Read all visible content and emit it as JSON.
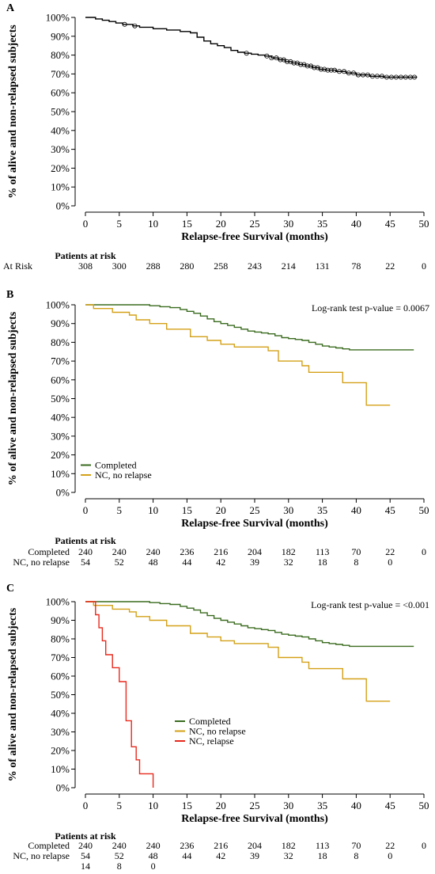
{
  "chart_data": [
    {
      "panel": "A",
      "type": "line",
      "xlabel": "Relapse-free Survival (months)",
      "ylabel": "% of alive and non-relapsed subjects",
      "xlim": [
        0,
        50
      ],
      "ylim": [
        0,
        100
      ],
      "xticks": [
        "0",
        "5",
        "10",
        "15",
        "20",
        "25",
        "30",
        "35",
        "40",
        "45",
        "50"
      ],
      "yticks": [
        "0%",
        "10%",
        "20%",
        "30%",
        "40%",
        "50%",
        "60%",
        "70%",
        "80%",
        "90%",
        "100%"
      ],
      "grid": false,
      "annotation": "",
      "legend_position": "",
      "series": [
        {
          "name": "",
          "color": "#000000",
          "x": [
            0,
            1.5,
            2.5,
            3.5,
            4.5,
            5.5,
            7,
            8,
            10,
            12,
            14,
            15.5,
            16.5,
            17.5,
            18.5,
            19.5,
            20.5,
            21.5,
            22.5,
            23.5,
            24.5,
            25.5,
            26.5,
            27.5,
            28.5,
            29.5,
            30.5,
            31.5,
            32.5,
            33.5,
            34.5,
            35.5,
            37,
            38.5,
            40,
            42,
            44,
            49
          ],
          "y": [
            100,
            99.2,
            98.5,
            97.8,
            97,
            96.3,
            95.5,
            94.8,
            94,
            93.3,
            92.5,
            91.8,
            89.5,
            87.5,
            86,
            85,
            84,
            82.5,
            81.5,
            81,
            80.5,
            80,
            79.5,
            78.5,
            77.5,
            76.5,
            75.8,
            75,
            74.2,
            73.3,
            72.5,
            72,
            71.3,
            70.5,
            69.5,
            68.8,
            68.3,
            68.3
          ]
        }
      ],
      "censor_x": [
        5.8,
        7.3,
        23.8,
        26.8,
        27.5,
        28.2,
        28.8,
        29.3,
        29.8,
        30.3,
        30.8,
        31.3,
        31.8,
        32.3,
        32.8,
        33.3,
        33.8,
        34.3,
        34.8,
        35.3,
        35.8,
        36.3,
        36.8,
        37.5,
        38.2,
        38.9,
        39.6,
        40.3,
        41,
        41.7,
        42.4,
        43.1,
        43.8,
        44.5,
        45.2,
        45.9,
        46.6,
        47.3,
        48,
        48.6
      ],
      "risk_table": {
        "heading": "Patients at risk",
        "rows": [
          {
            "label": "At Risk",
            "values": [
              "308",
              "300",
              "288",
              "280",
              "258",
              "243",
              "214",
              "131",
              "78",
              "22",
              "0"
            ]
          }
        ]
      }
    },
    {
      "panel": "B",
      "type": "line",
      "xlabel": "Relapse-free Survival (months)",
      "ylabel": "% of alive and non-relapsed subjects",
      "xlim": [
        0,
        50
      ],
      "ylim": [
        0,
        100
      ],
      "xticks": [
        "0",
        "5",
        "10",
        "15",
        "20",
        "25",
        "30",
        "35",
        "40",
        "45",
        "50"
      ],
      "yticks": [
        "0%",
        "10%",
        "20%",
        "30%",
        "40%",
        "50%",
        "60%",
        "70%",
        "80%",
        "90%",
        "100%"
      ],
      "grid": false,
      "annotation": "Log-rank test p-value = 0.0067",
      "legend_position": "bottom-left",
      "series": [
        {
          "name": "Completed",
          "color": "#3a6b1f",
          "x": [
            0,
            9.5,
            11,
            12.5,
            14,
            15,
            16,
            17,
            18,
            19,
            20,
            21,
            22,
            23,
            24,
            25,
            26,
            27,
            28,
            29,
            30,
            31,
            32,
            33,
            34,
            35,
            36,
            37,
            38,
            39,
            48.5
          ],
          "y": [
            100,
            99.5,
            99,
            98.5,
            97.5,
            96.5,
            95.5,
            94,
            92.5,
            91,
            90,
            89,
            88,
            87,
            86,
            85.5,
            85,
            84.5,
            83.5,
            82.5,
            82,
            81.5,
            81,
            80,
            79,
            78,
            77.5,
            77,
            76.5,
            76,
            76
          ]
        },
        {
          "name": "NC, no relapse",
          "color": "#d4a017",
          "x": [
            0,
            1.2,
            4,
            6.5,
            7.5,
            9.5,
            12,
            15.5,
            18,
            20,
            22,
            27,
            28.5,
            32,
            33,
            38,
            41.5,
            45
          ],
          "y": [
            100,
            98,
            96,
            94.5,
            92,
            90,
            87,
            83,
            81,
            79,
            77.5,
            75.5,
            70,
            67.5,
            64,
            58.5,
            46.5,
            46.5
          ]
        }
      ],
      "censor_x": [],
      "risk_table": {
        "heading": "Patients at risk",
        "rows": [
          {
            "label": "Completed",
            "values": [
              "240",
              "240",
              "240",
              "236",
              "216",
              "204",
              "182",
              "113",
              "70",
              "22",
              "0"
            ]
          },
          {
            "label": "NC, no relapse",
            "values": [
              "54",
              "52",
              "48",
              "44",
              "42",
              "39",
              "32",
              "18",
              "8",
              "0",
              ""
            ]
          }
        ]
      }
    },
    {
      "panel": "C",
      "type": "line",
      "xlabel": "Relapse-free Survival (months)",
      "ylabel": "% of alive and non-relapsed subjects",
      "xlim": [
        0,
        50
      ],
      "ylim": [
        0,
        100
      ],
      "xticks": [
        "0",
        "5",
        "10",
        "15",
        "20",
        "25",
        "30",
        "35",
        "40",
        "45",
        "50"
      ],
      "yticks": [
        "0%",
        "10%",
        "20%",
        "30%",
        "40%",
        "50%",
        "60%",
        "70%",
        "80%",
        "90%",
        "100%"
      ],
      "grid": false,
      "annotation": "Log-rank test p-value = <0.001",
      "legend_position": "bottom-center",
      "series": [
        {
          "name": "Completed",
          "color": "#3a6b1f",
          "x": [
            0,
            9.5,
            11,
            12.5,
            14,
            15,
            16,
            17,
            18,
            19,
            20,
            21,
            22,
            23,
            24,
            25,
            26,
            27,
            28,
            29,
            30,
            31,
            32,
            33,
            34,
            35,
            36,
            37,
            38,
            39,
            48.5
          ],
          "y": [
            100,
            99.5,
            99,
            98.5,
            97.5,
            96.5,
            95.5,
            94,
            92.5,
            91,
            90,
            89,
            88,
            87,
            86,
            85.5,
            85,
            84.5,
            83.5,
            82.5,
            82,
            81.5,
            81,
            80,
            79,
            78,
            77.5,
            77,
            76.5,
            76,
            76
          ]
        },
        {
          "name": "NC, no relapse",
          "color": "#d4a017",
          "x": [
            0,
            1.2,
            4,
            6.5,
            7.5,
            9.5,
            12,
            15.5,
            18,
            20,
            22,
            27,
            28.5,
            32,
            33,
            38,
            41.5,
            45
          ],
          "y": [
            100,
            98,
            96,
            94.5,
            92,
            90,
            87,
            83,
            81,
            79,
            77.5,
            75.5,
            70,
            67.5,
            64,
            58.5,
            46.5,
            46.5
          ]
        },
        {
          "name": "NC, relapse",
          "color": "#e8291c",
          "x": [
            0,
            1.5,
            2,
            2.5,
            3,
            4,
            5,
            6,
            6.8,
            7.5,
            8,
            10
          ],
          "y": [
            100,
            93,
            86,
            79,
            71.5,
            64.5,
            57,
            36,
            22,
            15,
            7.5,
            0
          ]
        }
      ],
      "censor_x": [],
      "risk_table": {
        "heading": "Patients at risk",
        "rows": [
          {
            "label": "Completed",
            "values": [
              "240",
              "240",
              "240",
              "236",
              "216",
              "204",
              "182",
              "113",
              "70",
              "22",
              "0"
            ]
          },
          {
            "label": "NC, no relapse",
            "values": [
              "54",
              "52",
              "48",
              "44",
              "42",
              "39",
              "32",
              "18",
              "8",
              "0",
              ""
            ]
          },
          {
            "label": "",
            "values": [
              "14",
              "8",
              "0",
              "",
              "",
              "",
              "",
              "",
              "",
              "",
              ""
            ]
          }
        ]
      }
    }
  ]
}
